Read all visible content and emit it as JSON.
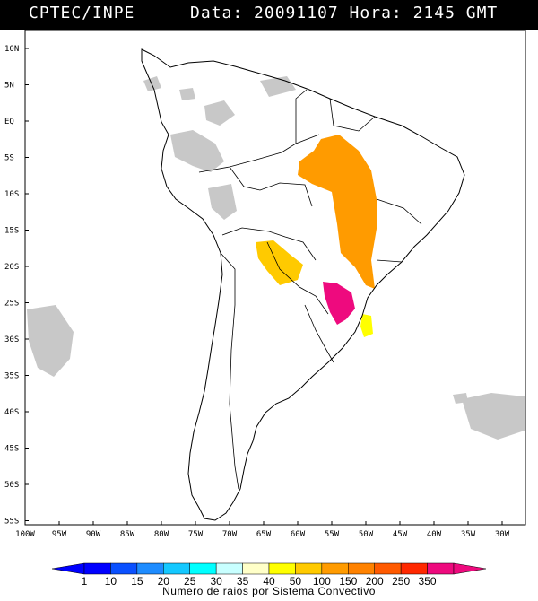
{
  "header": {
    "source": "CPTEC/INPE",
    "datetime": "Data: 20091107 Hora: 2145 GMT"
  },
  "map": {
    "lat_ticks": [
      "10N",
      "5N",
      "EQ",
      "5S",
      "10S",
      "15S",
      "20S",
      "25S",
      "30S",
      "35S",
      "40S",
      "45S",
      "50S",
      "55S"
    ],
    "lon_ticks": [
      "100W",
      "95W",
      "90W",
      "85W",
      "80W",
      "75W",
      "70W",
      "65W",
      "60W",
      "55W",
      "50W",
      "45W",
      "40W",
      "35W",
      "30W"
    ],
    "cloud_color": "#c8c8c8",
    "lightning_regions": [
      {
        "name": "Central Brazil cluster",
        "color": "#ff9b00",
        "range": "100-150"
      },
      {
        "name": "Paraguay cluster",
        "color": "#ffca00",
        "range": "50-100"
      },
      {
        "name": "Parana / Misiones cluster",
        "color": "#ee0a7e",
        "range": "350"
      },
      {
        "name": "Santa Catarina coast",
        "color": "#ffff00",
        "range": "35-40"
      }
    ]
  },
  "legend": {
    "title": "Numero de raios por Sistema Convectivo",
    "labels": [
      "1",
      "10",
      "15",
      "20",
      "25",
      "30",
      "35",
      "40",
      "50",
      "100",
      "150",
      "200",
      "250",
      "350"
    ],
    "colors": [
      "#0000ff",
      "#0a50ff",
      "#1e8cff",
      "#14c8ff",
      "#00ffff",
      "#c8ffff",
      "#ffffc8",
      "#ffff00",
      "#ffca00",
      "#ff9b00",
      "#ff8200",
      "#ff5a00",
      "#ff2800",
      "#ee0a7e"
    ]
  }
}
